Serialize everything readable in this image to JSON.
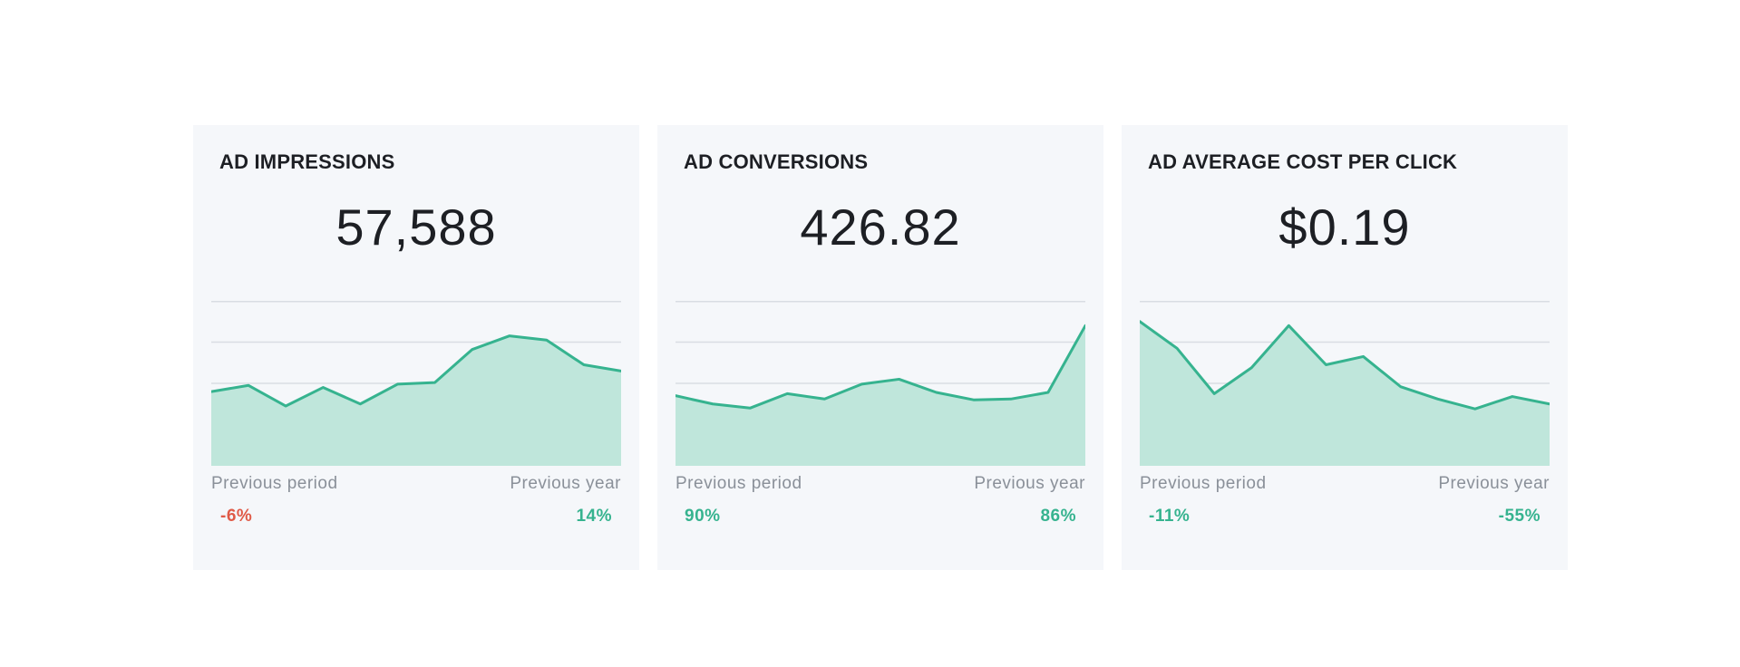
{
  "colors": {
    "positive": "#36b38f",
    "negative": "#e05a47"
  },
  "cards": [
    {
      "title": "AD IMPRESSIONS",
      "value": "57,588",
      "previous_period_label": "Previous period",
      "previous_year_label": "Previous year",
      "previous_period_change": "-6%",
      "previous_period_trend": "negative",
      "previous_year_change": "14%",
      "previous_year_trend": "positive"
    },
    {
      "title": "AD CONVERSIONS",
      "value": "426.82",
      "previous_period_label": "Previous period",
      "previous_year_label": "Previous year",
      "previous_period_change": "90%",
      "previous_period_trend": "positive",
      "previous_year_change": "86%",
      "previous_year_trend": "positive"
    },
    {
      "title": "AD AVERAGE COST PER CLICK",
      "value": "$0.19",
      "previous_period_label": "Previous period",
      "previous_year_label": "Previous year",
      "previous_period_change": "-11%",
      "previous_period_trend": "positive",
      "previous_year_change": "-55%",
      "previous_year_trend": "positive"
    }
  ],
  "chart_data": [
    {
      "type": "area",
      "title": "",
      "x": [
        1,
        2,
        3,
        4,
        5,
        6,
        7,
        8,
        9,
        10,
        11,
        12
      ],
      "values": [
        1.8,
        1.95,
        1.45,
        1.9,
        1.5,
        1.98,
        2.02,
        2.82,
        3.15,
        3.05,
        2.45,
        2.3
      ],
      "ylim": [
        0,
        4
      ],
      "grid": true
    },
    {
      "type": "area",
      "title": "",
      "x": [
        1,
        2,
        3,
        4,
        5,
        6,
        7,
        8,
        9,
        10,
        11,
        12
      ],
      "values": [
        1.7,
        1.5,
        1.4,
        1.75,
        1.62,
        1.98,
        2.1,
        1.78,
        1.6,
        1.62,
        1.78,
        3.4
      ],
      "ylim": [
        0,
        4
      ],
      "grid": true
    },
    {
      "type": "area",
      "title": "",
      "x": [
        1,
        2,
        3,
        4,
        5,
        6,
        7,
        8,
        9,
        10,
        11,
        12
      ],
      "values": [
        3.5,
        2.85,
        1.75,
        2.38,
        3.4,
        2.45,
        2.65,
        1.92,
        1.62,
        1.38,
        1.68,
        1.5
      ],
      "ylim": [
        0,
        4
      ],
      "grid": true
    }
  ]
}
